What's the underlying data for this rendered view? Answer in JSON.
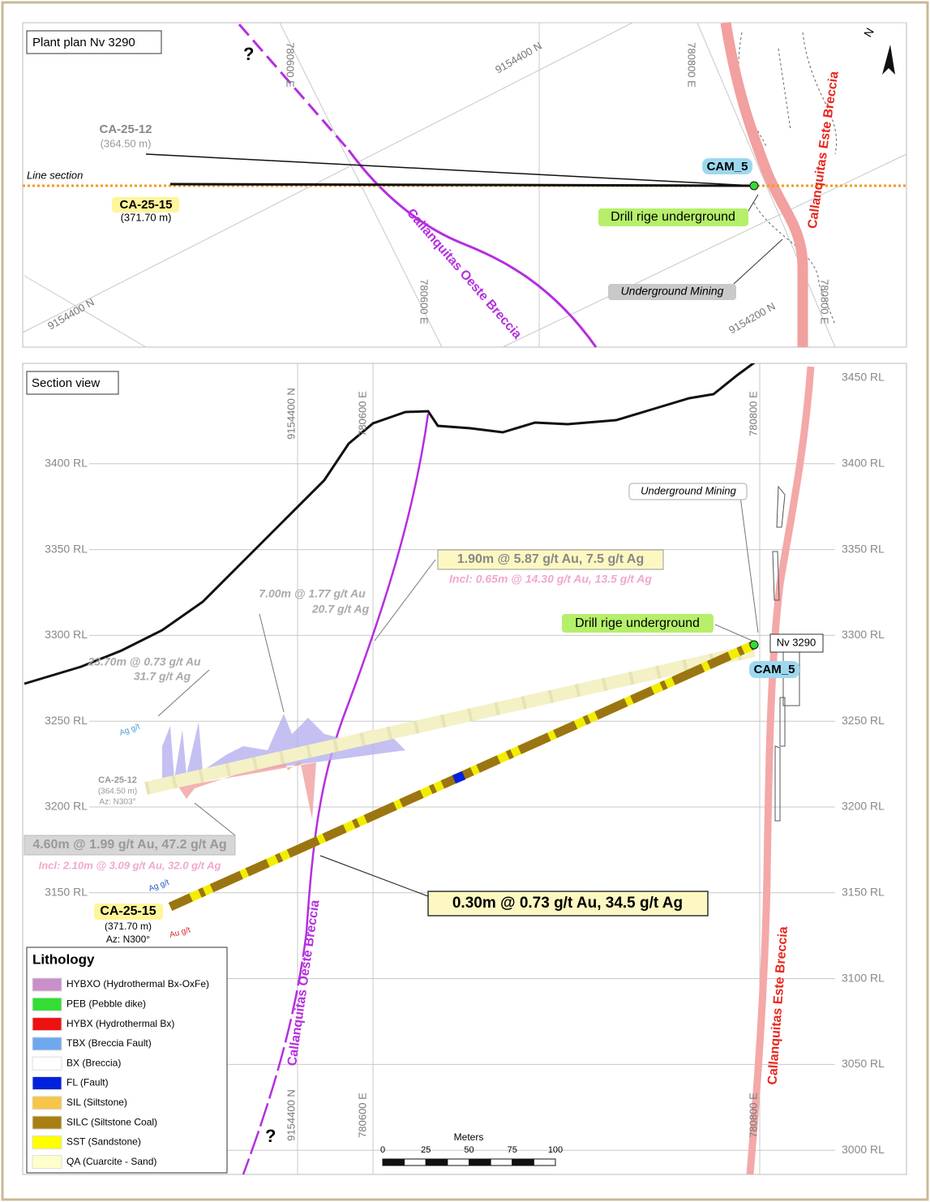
{
  "plan": {
    "title": "Plant plan Nv 3290",
    "north": "N",
    "question": "?",
    "grid_labels": [
      "780600 E",
      "9154400 N",
      "780800 E",
      "9154400 N",
      "780600 E",
      "9154200 N",
      "780800 E"
    ],
    "holes": [
      {
        "name": "CA-25-12",
        "length": "(364.50 m)"
      },
      {
        "name": "CA-25-15",
        "length": "(371.70 m)"
      }
    ],
    "line_section": "Line section",
    "collar": "CAM_5",
    "rig": "Drill rige underground",
    "este": "Callanquitas Este Breccia",
    "oeste": "Callanquitas Oeste Breccia",
    "mining": "Underground Mining"
  },
  "section": {
    "title": "Section view",
    "rl_labels": [
      "3450 RL",
      "3400 RL",
      "3350 RL",
      "3300 RL",
      "3250 RL",
      "3200 RL",
      "3150 RL",
      "3100 RL",
      "3050 RL",
      "3000 RL"
    ],
    "grid_labels_top": [
      "9154400 N",
      "780600 E",
      "780800 E"
    ],
    "grid_labels_bottom": [
      "9154400 N",
      "780600 E",
      "780800 E"
    ],
    "question": "?",
    "mining": "Underground Mining",
    "rig": "Drill rige underground",
    "level": "Nv 3290",
    "collar": "CAM_5",
    "holes": [
      {
        "name": "CA-25-12",
        "length": "(364.50 m)",
        "azimuth": "Az: N303°"
      },
      {
        "name": "CA-25-15",
        "length": "(371.70 m)",
        "azimuth": "Az: N300°"
      }
    ],
    "intercepts": [
      {
        "main": "1.90m @ 5.87 g/t Au, 7.5 g/t Ag",
        "incl": "Incl: 0.65m @ 14.30 g/t Au, 13.5 g/t Ag"
      },
      {
        "main": "7.00m @ 1.77 g/t Au",
        "incl": "20.7 g/t Ag"
      },
      {
        "main": "23.70m @ 0.73 g/t Au",
        "incl": "31.7 g/t Ag"
      },
      {
        "main": "4.60m @ 1.99 g/t Au, 47.2 g/t Ag",
        "incl": "Incl: 2.10m @ 3.09 g/t Au, 32.0 g/t Ag"
      },
      {
        "main": "0.30m @ 0.73 g/t Au, 34.5 g/t Ag"
      }
    ],
    "ag_label": "Ag g/t",
    "au_label": "Au g/t",
    "oeste": "Callanquitas Oeste Breccia",
    "este": "Callanquitas Este Breccia",
    "legend": {
      "title": "Lithology",
      "items": [
        {
          "label": "HYBXO (Hydrothermal Bx-OxFe)",
          "color": "#c98fc9"
        },
        {
          "label": "PEB (Pebble dike)",
          "color": "#33dd33"
        },
        {
          "label": "HYBX (Hydrothermal Bx)",
          "color": "#ee1111"
        },
        {
          "label": "TBX (Breccia Fault)",
          "color": "#6fa8ef"
        },
        {
          "label": "BX (Breccia)",
          "color": "#ffffff"
        },
        {
          "label": "FL (Fault)",
          "color": "#0022dd"
        },
        {
          "label": "SIL (Siltstone)",
          "color": "#f7c548"
        },
        {
          "label": "SILC (Siltstone Coal)",
          "color": "#a77f14"
        },
        {
          "label": "SST (Sandstone)",
          "color": "#ffff00"
        },
        {
          "label": "QA (Cuarcite - Sand)",
          "color": "#ffffcc"
        }
      ]
    },
    "scale": {
      "title": "Meters",
      "ticks": [
        "0",
        "25",
        "50",
        "75",
        "100"
      ]
    }
  }
}
